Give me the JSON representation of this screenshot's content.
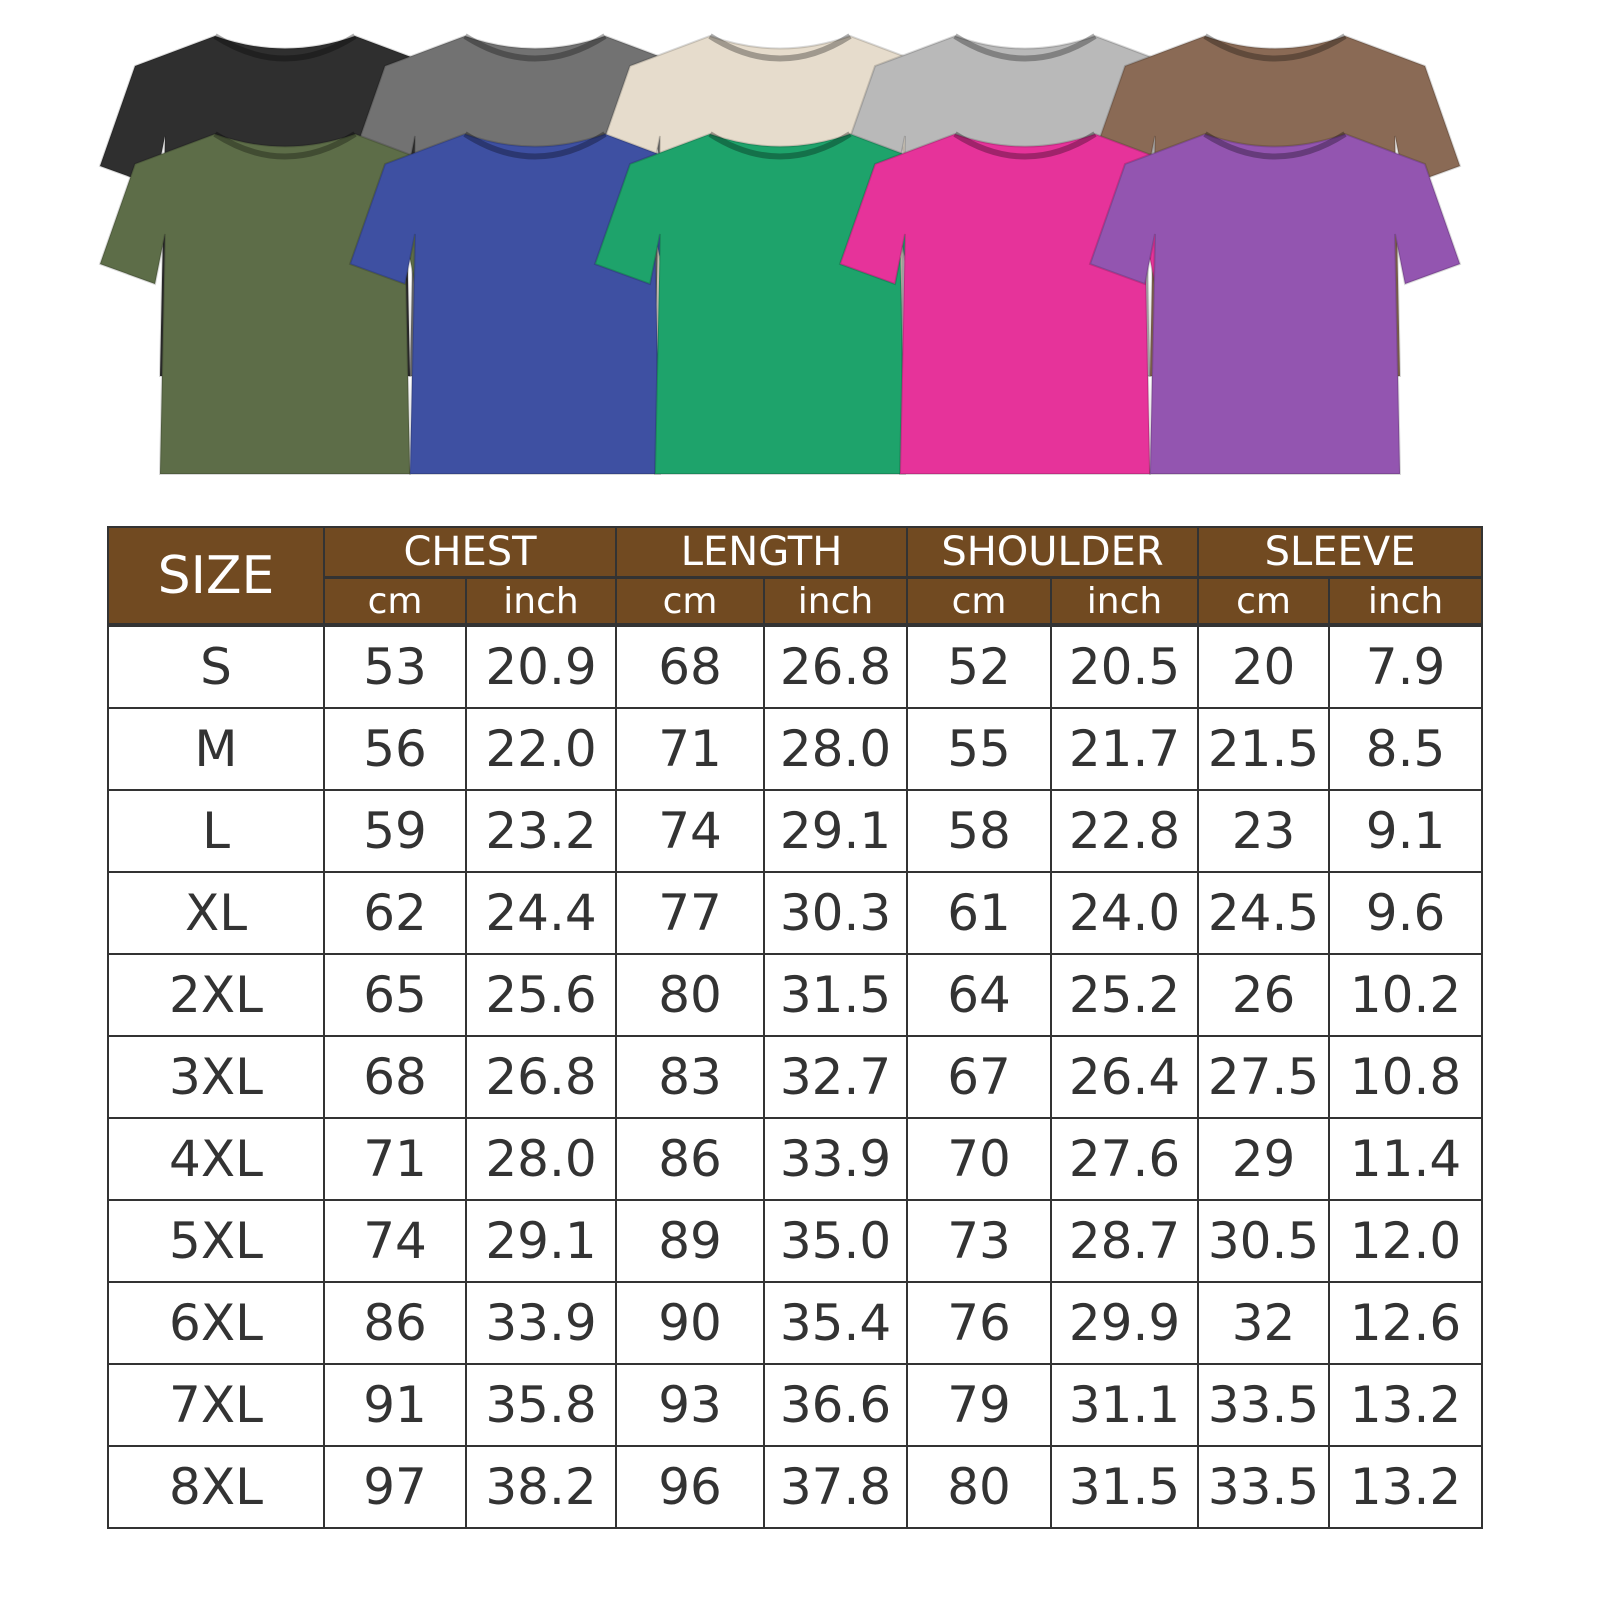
{
  "shirts": {
    "back_row": [
      {
        "color_name": "black",
        "hex": "#2f2f2f"
      },
      {
        "color_name": "grey",
        "hex": "#727272"
      },
      {
        "color_name": "cream",
        "hex": "#e6dccc"
      },
      {
        "color_name": "light-grey",
        "hex": "#b9b9b9"
      },
      {
        "color_name": "brown",
        "hex": "#8a6a55"
      }
    ],
    "front_row": [
      {
        "color_name": "olive",
        "hex": "#5d6d48"
      },
      {
        "color_name": "blue",
        "hex": "#3e50a2"
      },
      {
        "color_name": "green",
        "hex": "#1ea36b"
      },
      {
        "color_name": "pink",
        "hex": "#e6339a"
      },
      {
        "color_name": "purple",
        "hex": "#9355b0"
      }
    ]
  },
  "table": {
    "header_color": "#714a21",
    "size_label": "SIZE",
    "groups": [
      "CHEST",
      "LENGTH",
      "SHOULDER",
      "SLEEVE"
    ],
    "units": [
      "cm",
      "inch"
    ],
    "rows": [
      [
        "S",
        "53",
        "20.9",
        "68",
        "26.8",
        "52",
        "20.5",
        "20",
        "7.9"
      ],
      [
        "M",
        "56",
        "22.0",
        "71",
        "28.0",
        "55",
        "21.7",
        "21.5",
        "8.5"
      ],
      [
        "L",
        "59",
        "23.2",
        "74",
        "29.1",
        "58",
        "22.8",
        "23",
        "9.1"
      ],
      [
        "XL",
        "62",
        "24.4",
        "77",
        "30.3",
        "61",
        "24.0",
        "24.5",
        "9.6"
      ],
      [
        "2XL",
        "65",
        "25.6",
        "80",
        "31.5",
        "64",
        "25.2",
        "26",
        "10.2"
      ],
      [
        "3XL",
        "68",
        "26.8",
        "83",
        "32.7",
        "67",
        "26.4",
        "27.5",
        "10.8"
      ],
      [
        "4XL",
        "71",
        "28.0",
        "86",
        "33.9",
        "70",
        "27.6",
        "29",
        "11.4"
      ],
      [
        "5XL",
        "74",
        "29.1",
        "89",
        "35.0",
        "73",
        "28.7",
        "30.5",
        "12.0"
      ],
      [
        "6XL",
        "86",
        "33.9",
        "90",
        "35.4",
        "76",
        "29.9",
        "32",
        "12.6"
      ],
      [
        "7XL",
        "91",
        "35.8",
        "93",
        "36.6",
        "79",
        "31.1",
        "33.5",
        "13.2"
      ],
      [
        "8XL",
        "97",
        "38.2",
        "96",
        "37.8",
        "80",
        "31.5",
        "33.5",
        "13.2"
      ]
    ]
  }
}
